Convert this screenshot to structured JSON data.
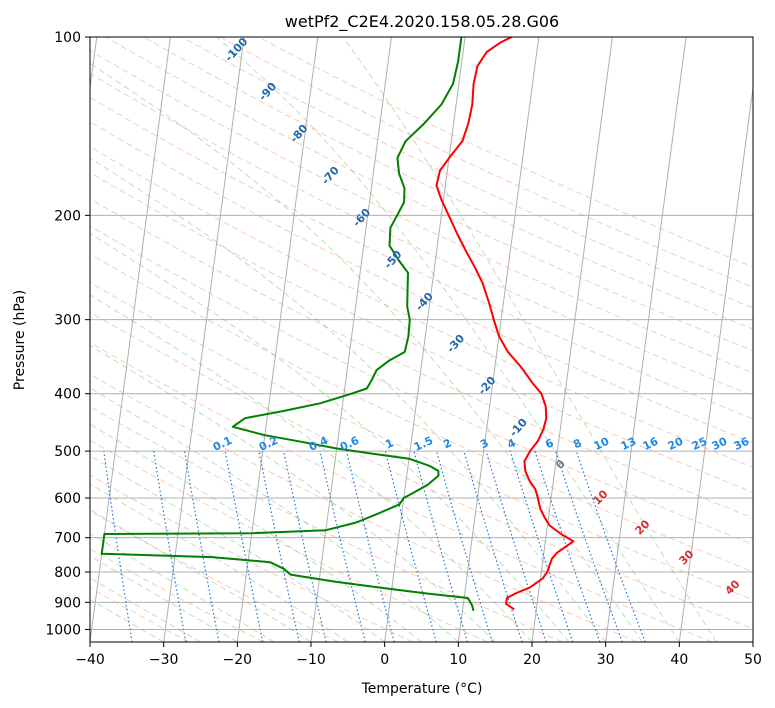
{
  "chart_data": {
    "type": "line",
    "title": "wetPf2_C2E4.2020.158.05.28.G06",
    "xlabel": "Temperature (°C)",
    "ylabel": "Pressure (hPa)",
    "xlim": [
      -40,
      50
    ],
    "ylim": [
      1050,
      100
    ],
    "y_scale": "log",
    "grid": true,
    "x_ticks": [
      -40,
      -30,
      -20,
      -10,
      0,
      10,
      20,
      30,
      40,
      50
    ],
    "y_ticks": [
      100,
      200,
      300,
      400,
      500,
      600,
      700,
      800,
      900,
      1000
    ],
    "series": [
      {
        "color": "#ff0000",
        "points": [
          [
            17.0,
            925
          ],
          [
            15.8,
            905
          ],
          [
            15.8,
            885
          ],
          [
            17.0,
            868
          ],
          [
            18.7,
            850
          ],
          [
            20.3,
            820
          ],
          [
            20.8,
            800
          ],
          [
            21.2,
            760
          ],
          [
            21.8,
            742
          ],
          [
            23.8,
            710
          ],
          [
            22.0,
            690
          ],
          [
            20.3,
            668
          ],
          [
            19.5,
            648
          ],
          [
            18.7,
            625
          ],
          [
            18.2,
            600
          ],
          [
            17.7,
            580
          ],
          [
            16.7,
            560
          ],
          [
            16.0,
            540
          ],
          [
            15.7,
            520
          ],
          [
            16.3,
            500
          ],
          [
            17.2,
            480
          ],
          [
            17.7,
            460
          ],
          [
            17.9,
            440
          ],
          [
            17.6,
            420
          ],
          [
            16.8,
            400
          ],
          [
            15.5,
            385
          ],
          [
            13.5,
            360
          ],
          [
            11.5,
            340
          ],
          [
            10.0,
            320
          ],
          [
            9.0,
            300
          ],
          [
            8.0,
            280
          ],
          [
            6.8,
            260
          ],
          [
            5.5,
            245
          ],
          [
            4.0,
            230
          ],
          [
            2.5,
            215
          ],
          [
            1.0,
            200
          ],
          [
            -0.3,
            188
          ],
          [
            -1.2,
            178
          ],
          [
            -1.0,
            168
          ],
          [
            0.3,
            158
          ],
          [
            1.5,
            150
          ],
          [
            2.0,
            140
          ],
          [
            2.2,
            130
          ],
          [
            2.0,
            120
          ],
          [
            2.2,
            112
          ],
          [
            3.2,
            106
          ],
          [
            5.0,
            102
          ],
          [
            7.0,
            99
          ]
        ]
      },
      {
        "color": "#008000",
        "points": [
          [
            11.5,
            930
          ],
          [
            11.2,
            910
          ],
          [
            10.5,
            885
          ],
          [
            5.0,
            870
          ],
          [
            0.0,
            855
          ],
          [
            -8.0,
            830
          ],
          [
            -14.0,
            808
          ],
          [
            -15.0,
            790
          ],
          [
            -17.0,
            770
          ],
          [
            -25.0,
            755
          ],
          [
            -40.0,
            745
          ],
          [
            -40.0,
            690
          ],
          [
            -20.0,
            688
          ],
          [
            -10.0,
            680
          ],
          [
            -6.0,
            660
          ],
          [
            -3.5,
            640
          ],
          [
            -0.5,
            615
          ],
          [
            0.0,
            600
          ],
          [
            1.5,
            585
          ],
          [
            3.0,
            570
          ],
          [
            4.3,
            550
          ],
          [
            4.2,
            540
          ],
          [
            3.0,
            530
          ],
          [
            0.0,
            515
          ],
          [
            -5.0,
            505
          ],
          [
            -10.0,
            495
          ],
          [
            -15.0,
            482
          ],
          [
            -20.0,
            470
          ],
          [
            -24.5,
            455
          ],
          [
            -23.0,
            440
          ],
          [
            -18.0,
            428
          ],
          [
            -13.0,
            415
          ],
          [
            -9.0,
            400
          ],
          [
            -7.0,
            392
          ],
          [
            -6.5,
            380
          ],
          [
            -6.0,
            365
          ],
          [
            -4.5,
            352
          ],
          [
            -2.5,
            340
          ],
          [
            -2.3,
            320
          ],
          [
            -2.4,
            300
          ],
          [
            -3.0,
            285
          ],
          [
            -3.2,
            270
          ],
          [
            -3.5,
            250
          ],
          [
            -5.0,
            238
          ],
          [
            -6.5,
            225
          ],
          [
            -6.7,
            210
          ],
          [
            -6.0,
            200
          ],
          [
            -5.3,
            190
          ],
          [
            -5.5,
            180
          ],
          [
            -6.5,
            170
          ],
          [
            -7.0,
            160
          ],
          [
            -6.2,
            150
          ],
          [
            -4.0,
            140
          ],
          [
            -2.0,
            130
          ],
          [
            -0.8,
            120
          ],
          [
            -0.5,
            110
          ],
          [
            -0.5,
            100
          ]
        ]
      }
    ],
    "annotations": {
      "dry_adiabat_labels": [
        "-100",
        "-90",
        "-80",
        "-70",
        "-60",
        "-50",
        "-40",
        "-30",
        "-20",
        "-10"
      ],
      "mixing_ratio_labels": [
        "0.1",
        "0.2",
        "0.4",
        "0.6",
        "1",
        "1.5",
        "2",
        "3",
        "4",
        "6",
        "8",
        "10",
        "13",
        "16",
        "20",
        "25",
        "30",
        "36"
      ],
      "moist_adiabat_labels": [
        "0",
        "10",
        "20",
        "30",
        "40"
      ]
    }
  }
}
